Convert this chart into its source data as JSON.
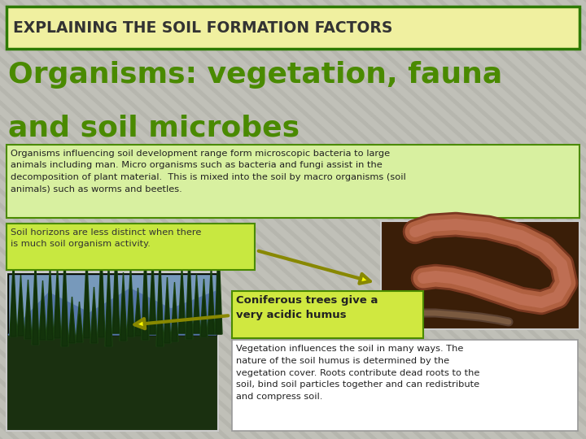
{
  "title_text": "EXPLAINING THE SOIL FORMATION FACTORS",
  "title_bg": "#f0f0a0",
  "title_border": "#2d7a00",
  "title_font_color": "#333333",
  "subtitle_line1": "Organisms: vegetation, fauna",
  "subtitle_line2": "and soil microbes",
  "subtitle_color": "#4a8a00",
  "bg_color": "#c0c0b8",
  "stripe_color": "#b0b0a8",
  "box1_text": "Organisms influencing soil development range form microscopic bacteria to large\nanimals including man. Micro organisms such as bacteria and fungi assist in the\ndecomposition of plant material.  This is mixed into the soil by macro organisms (soil\nanimals) such as worms and beetles.",
  "box1_bg": "#d8f0a0",
  "box1_border": "#4a8a00",
  "box2_text": "Soil horizons are less distinct when there\nis much soil organism activity.",
  "box2_bg": "#c8e840",
  "box2_border": "#4a8a00",
  "box3_text": "Coniferous trees give a\nvery acidic humus",
  "box3_bg": "#d0e840",
  "box3_border": "#4a8a00",
  "box4_text": "Vegetation influences the soil in many ways. The\nnature of the soil humus is determined by the\nvegetation cover. Roots contribute dead roots to the\nsoil, bind soil particles together and can redistribute\nand compress soil.",
  "box4_bg": "#ffffff",
  "box4_border": "#999999",
  "arrow_color": "#ffff00",
  "arrow_ec": "#888800",
  "worm_soil_color": "#3a1e08",
  "worm_body_color": "#b06040",
  "worm_highlight": "#c87860",
  "forest_sky": "#7799bb",
  "forest_mountain": "#5577aa",
  "forest_tree": "#1a4010",
  "forest_dark": "#0d2808"
}
